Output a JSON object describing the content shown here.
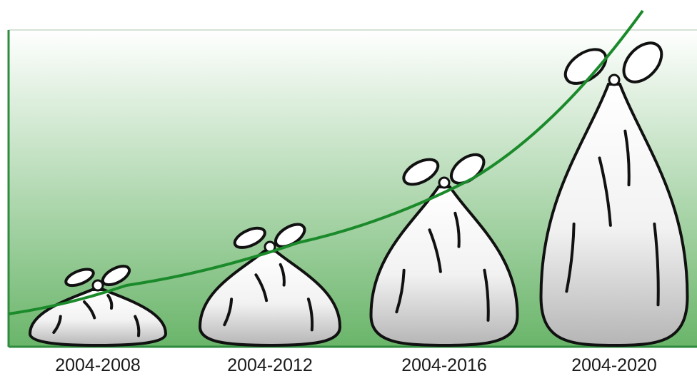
{
  "chart_data": {
    "type": "bar",
    "categories": [
      "2004-2008",
      "2004-2012",
      "2004-2016",
      "2004-2020"
    ],
    "values": [
      1,
      1.6,
      2.6,
      4.2
    ],
    "title": "",
    "xlabel": "",
    "ylabel": "",
    "grid": false,
    "legend": "none",
    "trend_line": true,
    "colors": {
      "background_top": "#ffffff",
      "background_bottom": "#6ab56a",
      "axis": "#2e8b3e",
      "trend": "#1a8a2a",
      "bag_fill_light": "#ffffff",
      "bag_fill_dark": "#bdbdbd",
      "bag_stroke": "#111111"
    },
    "icons": [
      "garbage-bag-icon"
    ]
  }
}
